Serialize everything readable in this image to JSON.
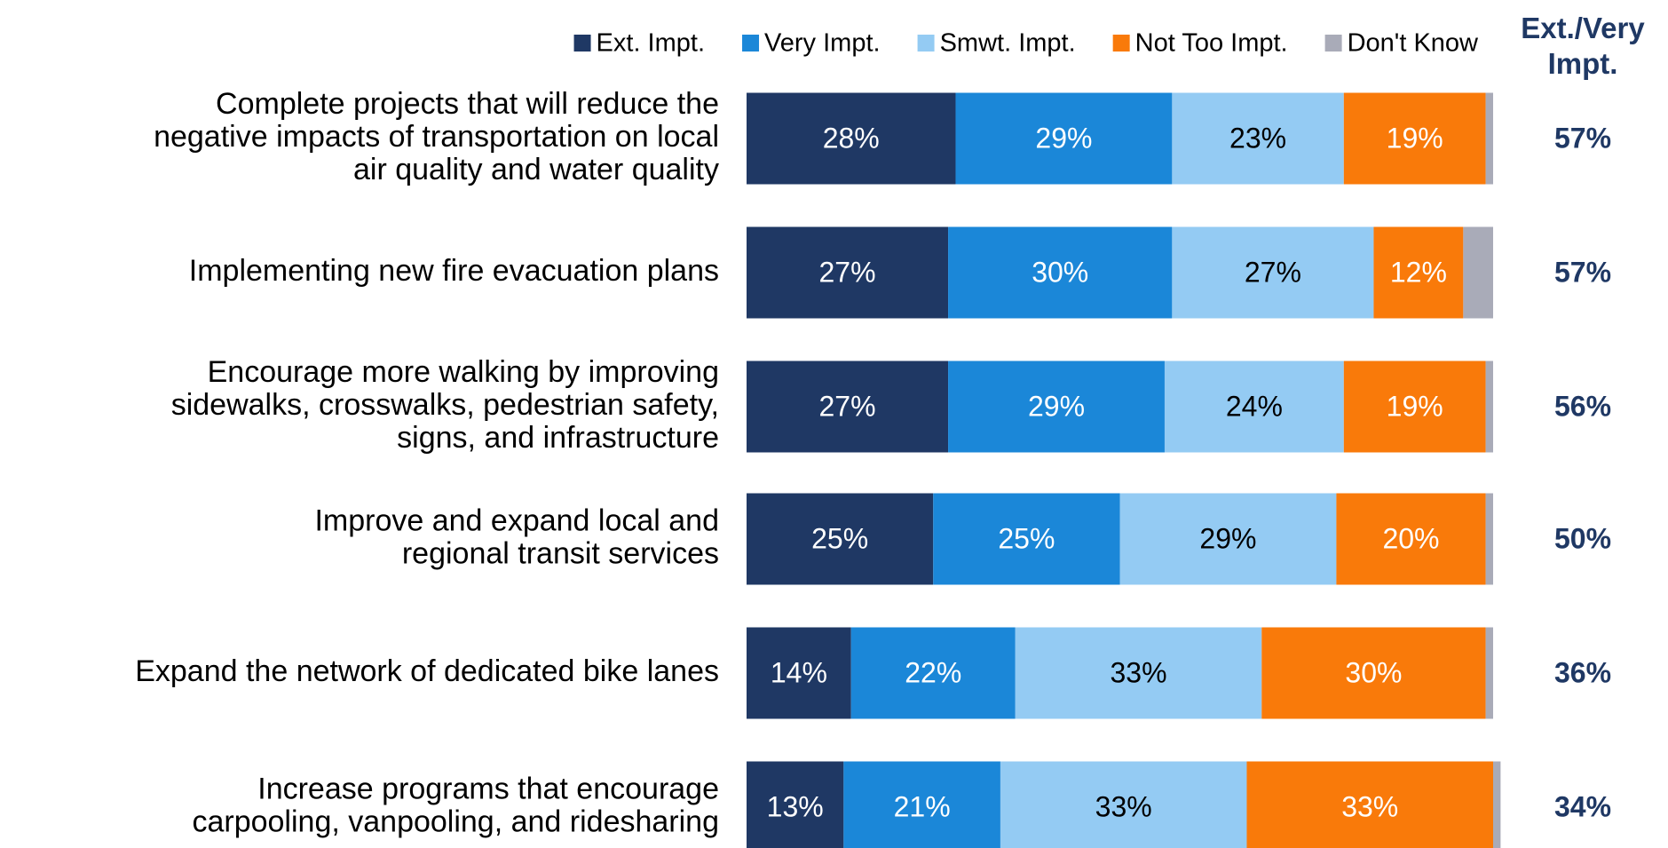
{
  "chart_data": {
    "type": "stacked_bar_horizontal",
    "categories": [
      "Complete projects that will reduce the\nnegative impacts of transportation on local\nair quality and water quality",
      "Implementing new fire evacuation plans",
      "Encourage more walking by improving\nsidewalks, crosswalks, pedestrian safety,\nsigns, and infrastructure",
      "Improve and expand local and\nregional transit services",
      "Expand the network of dedicated bike lanes",
      "Increase programs that encourage\ncarpooling, vanpooling, and ridesharing"
    ],
    "xlim": [
      0,
      100
    ],
    "series": [
      {
        "name": "Ext. Impt.",
        "color": "#1f3864",
        "label_color": "#ffffff",
        "values": [
          28,
          27,
          27,
          25,
          14,
          13
        ],
        "value_labels": [
          "28%",
          "27%",
          "27%",
          "25%",
          "14%",
          "13%"
        ]
      },
      {
        "name": "Very Impt.",
        "color": "#1b87d8",
        "label_color": "#ffffff",
        "values": [
          29,
          30,
          29,
          25,
          22,
          21
        ],
        "value_labels": [
          "29%",
          "30%",
          "29%",
          "25%",
          "22%",
          "21%"
        ]
      },
      {
        "name": "Smwt. Impt.",
        "color": "#94cbf3",
        "label_color": "#000000",
        "values": [
          23,
          27,
          24,
          29,
          33,
          33
        ],
        "value_labels": [
          "23%",
          "27%",
          "24%",
          "29%",
          "33%",
          "33%"
        ]
      },
      {
        "name": "Not Too Impt.",
        "color": "#f97a0a",
        "label_color": "#ffffff",
        "values": [
          19,
          12,
          19,
          20,
          30,
          33
        ],
        "value_labels": [
          "19%",
          "12%",
          "19%",
          "20%",
          "30%",
          "33%"
        ]
      },
      {
        "name": "Don't Know",
        "color": "#a9abb8",
        "values": [
          1,
          4,
          1,
          1,
          1,
          1
        ]
      }
    ],
    "net": {
      "title": "Ext./Very\nImpt.",
      "color": "#1f3864",
      "values": [
        57,
        57,
        56,
        50,
        36,
        34
      ],
      "value_labels": [
        "57%",
        "57%",
        "56%",
        "50%",
        "36%",
        "34%"
      ]
    }
  }
}
